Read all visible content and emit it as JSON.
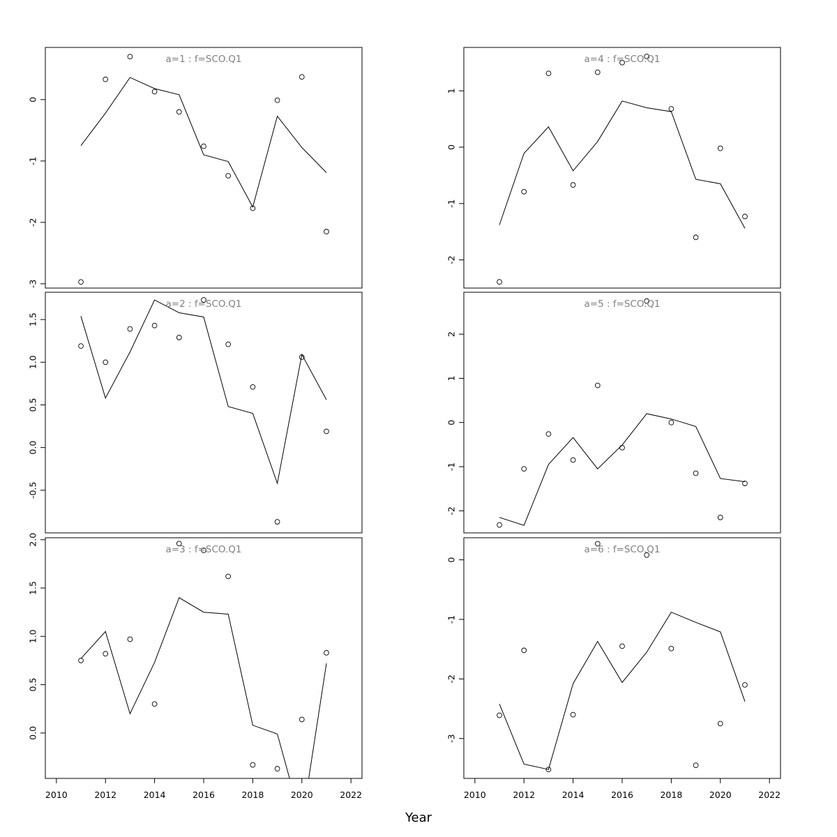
{
  "xlabel": "Year",
  "chart_data": [
    {
      "type": "line",
      "title": "a=1 : f=SCO.Q1",
      "observed": {
        "x": [
          2011,
          2012,
          2013,
          2014,
          2015,
          2016,
          2017,
          2018,
          2019,
          2020,
          2021
        ],
        "y": [
          -2.97,
          0.33,
          0.7,
          0.13,
          -0.2,
          -0.76,
          -1.24,
          -1.77,
          -0.01,
          0.37,
          -2.15
        ]
      },
      "fitted": {
        "x": [
          2011,
          2012,
          2013,
          2014,
          2015,
          2016,
          2017,
          2018,
          2019,
          2020,
          2021
        ],
        "y": [
          -0.75,
          -0.22,
          0.36,
          0.18,
          0.08,
          -0.9,
          -1.01,
          -1.75,
          -0.27,
          -0.78,
          -1.19
        ]
      },
      "ylim": [
        -3.07,
        0.85
      ],
      "yticks": [
        0,
        -1,
        -2,
        -3
      ],
      "ytick_labels": [
        "0",
        "-1",
        "-2",
        "-3"
      ]
    },
    {
      "type": "line",
      "title": "a=4 : f=SCO.Q1",
      "observed": {
        "x": [
          2011,
          2012,
          2013,
          2014,
          2015,
          2016,
          2017,
          2018,
          2019,
          2020,
          2021
        ],
        "y": [
          -2.39,
          -0.79,
          1.31,
          -0.67,
          1.33,
          1.5,
          1.61,
          0.68,
          -1.6,
          -0.02,
          -1.23
        ]
      },
      "fitted": {
        "x": [
          2011,
          2012,
          2013,
          2014,
          2015,
          2016,
          2017,
          2018,
          2019,
          2020,
          2021
        ],
        "y": [
          -1.38,
          -0.11,
          0.36,
          -0.42,
          0.1,
          0.82,
          0.7,
          0.63,
          -0.57,
          -0.65,
          -1.44
        ]
      },
      "ylim": [
        -2.5,
        1.77
      ],
      "yticks": [
        1,
        0,
        -1,
        -2
      ],
      "ytick_labels": [
        "1",
        "0",
        "-1",
        "-2"
      ]
    },
    {
      "type": "line",
      "title": "a=2 : f=SCO.Q1",
      "observed": {
        "x": [
          2011,
          2012,
          2013,
          2014,
          2015,
          2016,
          2017,
          2018,
          2019,
          2020,
          2021
        ],
        "y": [
          1.19,
          1.0,
          1.39,
          1.43,
          1.29,
          1.73,
          1.21,
          0.71,
          -0.87,
          1.06,
          0.19
        ]
      },
      "fitted": {
        "x": [
          2011,
          2012,
          2013,
          2014,
          2015,
          2016,
          2017,
          2018,
          2019,
          2020,
          2021
        ],
        "y": [
          1.54,
          0.58,
          1.12,
          1.73,
          1.58,
          1.53,
          0.48,
          0.4,
          -0.42,
          1.09,
          0.56
        ]
      },
      "ylim": [
        -1.0,
        1.82
      ],
      "yticks": [
        1.5,
        1.0,
        0.5,
        0.0,
        -0.5
      ],
      "ytick_labels": [
        "1.5",
        "1.0",
        "0.5",
        "0.0",
        "-0.5"
      ]
    },
    {
      "type": "line",
      "title": "a=5 : f=SCO.Q1",
      "observed": {
        "x": [
          2011,
          2012,
          2013,
          2014,
          2015,
          2016,
          2017,
          2018,
          2019,
          2020,
          2021
        ],
        "y": [
          -2.32,
          -1.05,
          -0.26,
          -0.85,
          0.84,
          -0.57,
          2.75,
          0.0,
          -1.15,
          -2.15,
          -1.38
        ]
      },
      "fitted": {
        "x": [
          2011,
          2012,
          2013,
          2014,
          2015,
          2016,
          2017,
          2018,
          2019,
          2020,
          2021
        ],
        "y": [
          -2.15,
          -2.33,
          -0.95,
          -0.34,
          -1.05,
          -0.51,
          0.2,
          0.08,
          -0.09,
          -1.27,
          -1.34
        ]
      },
      "ylim": [
        -2.5,
        2.95
      ],
      "yticks": [
        2,
        1,
        0,
        -1,
        -2
      ],
      "ytick_labels": [
        "2",
        "1",
        "0",
        "-1",
        "-2"
      ]
    },
    {
      "type": "line",
      "title": "a=3 : f=SCO.Q1",
      "observed": {
        "x": [
          2011,
          2012,
          2013,
          2014,
          2015,
          2016,
          2017,
          2018,
          2019,
          2020,
          2021
        ],
        "y": [
          0.75,
          0.82,
          0.97,
          0.3,
          1.96,
          1.89,
          1.62,
          -0.33,
          -0.37,
          0.14,
          0.83
        ]
      },
      "fitted": {
        "x": [
          2011,
          2012,
          2013,
          2014,
          2015,
          2016,
          2017,
          2018,
          2019,
          2020,
          2021
        ],
        "y": [
          0.77,
          1.05,
          0.2,
          0.73,
          1.4,
          1.25,
          1.23,
          0.08,
          -0.01,
          -0.93,
          0.72
        ]
      },
      "ylim": [
        -0.47,
        2.02
      ],
      "yticks": [
        2.0,
        1.5,
        1.0,
        0.5,
        0.0
      ],
      "ytick_labels": [
        "2.0",
        "1.5",
        "1.0",
        "0.5",
        "0.0"
      ],
      "xticks": [
        2010,
        2012,
        2014,
        2016,
        2018,
        2020,
        2022
      ],
      "xtick_labels": [
        "2010",
        "2012",
        "2014",
        "2016",
        "2018",
        "2020",
        "2022"
      ]
    },
    {
      "type": "line",
      "title": "a=6 : f=SCO.Q1",
      "observed": {
        "x": [
          2011,
          2012,
          2013,
          2014,
          2015,
          2016,
          2017,
          2018,
          2019,
          2020,
          2021
        ],
        "y": [
          -2.61,
          -1.52,
          -3.52,
          -2.6,
          0.27,
          -1.45,
          0.08,
          -1.49,
          -3.45,
          -2.75,
          -2.1
        ]
      },
      "fitted": {
        "x": [
          2011,
          2012,
          2013,
          2014,
          2015,
          2016,
          2017,
          2018,
          2019,
          2020,
          2021
        ],
        "y": [
          -2.42,
          -3.43,
          -3.52,
          -2.08,
          -1.37,
          -2.06,
          -1.55,
          -0.88,
          -1.05,
          -1.21,
          -2.38
        ]
      },
      "ylim": [
        -3.67,
        0.37
      ],
      "yticks": [
        0,
        -1,
        -2,
        -3
      ],
      "ytick_labels": [
        "0",
        "-1",
        "-2",
        "-3"
      ],
      "xticks": [
        2010,
        2012,
        2014,
        2016,
        2018,
        2020,
        2022
      ],
      "xtick_labels": [
        "2010",
        "2012",
        "2014",
        "2016",
        "2018",
        "2020",
        "2022"
      ]
    }
  ]
}
